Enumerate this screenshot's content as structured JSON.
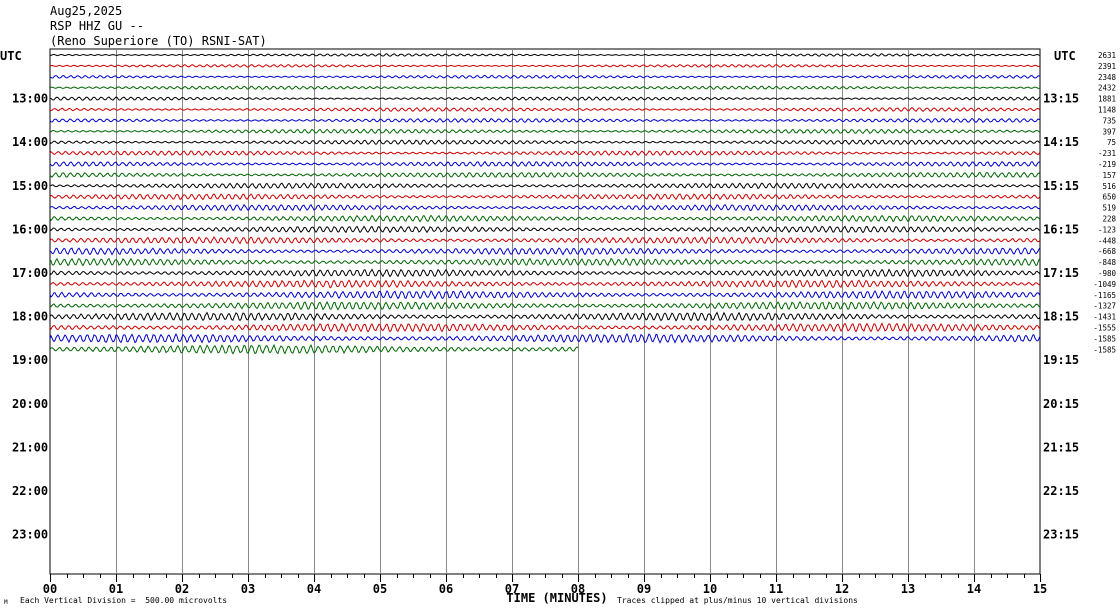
{
  "header": {
    "line1": "Aug25,2025",
    "line2": "RSP HHZ GU --",
    "line3": "(Reno Superiore (TO) RSNI-SAT)"
  },
  "footer": {
    "scale_note": "Each Vertical Division =  500.00 microvolts",
    "clip_note": "Traces clipped at plus/minus 10 vertical divisions",
    "corner_mark": "M"
  },
  "chart_data": {
    "type": "line",
    "title": "RSP HHZ GU --",
    "xlabel": "TIME (MINUTES)",
    "ylabel": "",
    "left_axis_label": "UTC",
    "right_axis_label": "UTC",
    "x_ticks": [
      "00",
      "01",
      "02",
      "03",
      "04",
      "05",
      "06",
      "07",
      "08",
      "09",
      "10",
      "11",
      "12",
      "13",
      "14",
      "15"
    ],
    "xlim": [
      0,
      15
    ],
    "left_hour_labels": [
      "13:00",
      "14:00",
      "15:00",
      "16:00",
      "17:00",
      "18:00",
      "19:00",
      "20:00",
      "21:00",
      "22:00",
      "23:00"
    ],
    "right_hour_labels": [
      "13:15",
      "14:15",
      "15:15",
      "16:15",
      "17:15",
      "18:15",
      "19:15",
      "20:15",
      "21:15",
      "22:15",
      "23:15"
    ],
    "trace_colors": [
      "#000000",
      "#cc0000",
      "#0000cc",
      "#006600"
    ],
    "traces_per_hour": 4,
    "trace_offsets": [
      "2631",
      "2391",
      "2348",
      "2432",
      "1881",
      "1148",
      "735",
      "397",
      "75",
      "-231",
      "-219",
      "157",
      "516",
      "650",
      "519",
      "228",
      "-123",
      "-448",
      "-668",
      "-848",
      "-980",
      "-1049",
      "-1165",
      "-1327",
      "-1431",
      "-1555",
      "-1585",
      "-1585"
    ],
    "last_trace_end_minute": 8,
    "grid": true,
    "scale_microvolts_per_division": 500.0
  }
}
